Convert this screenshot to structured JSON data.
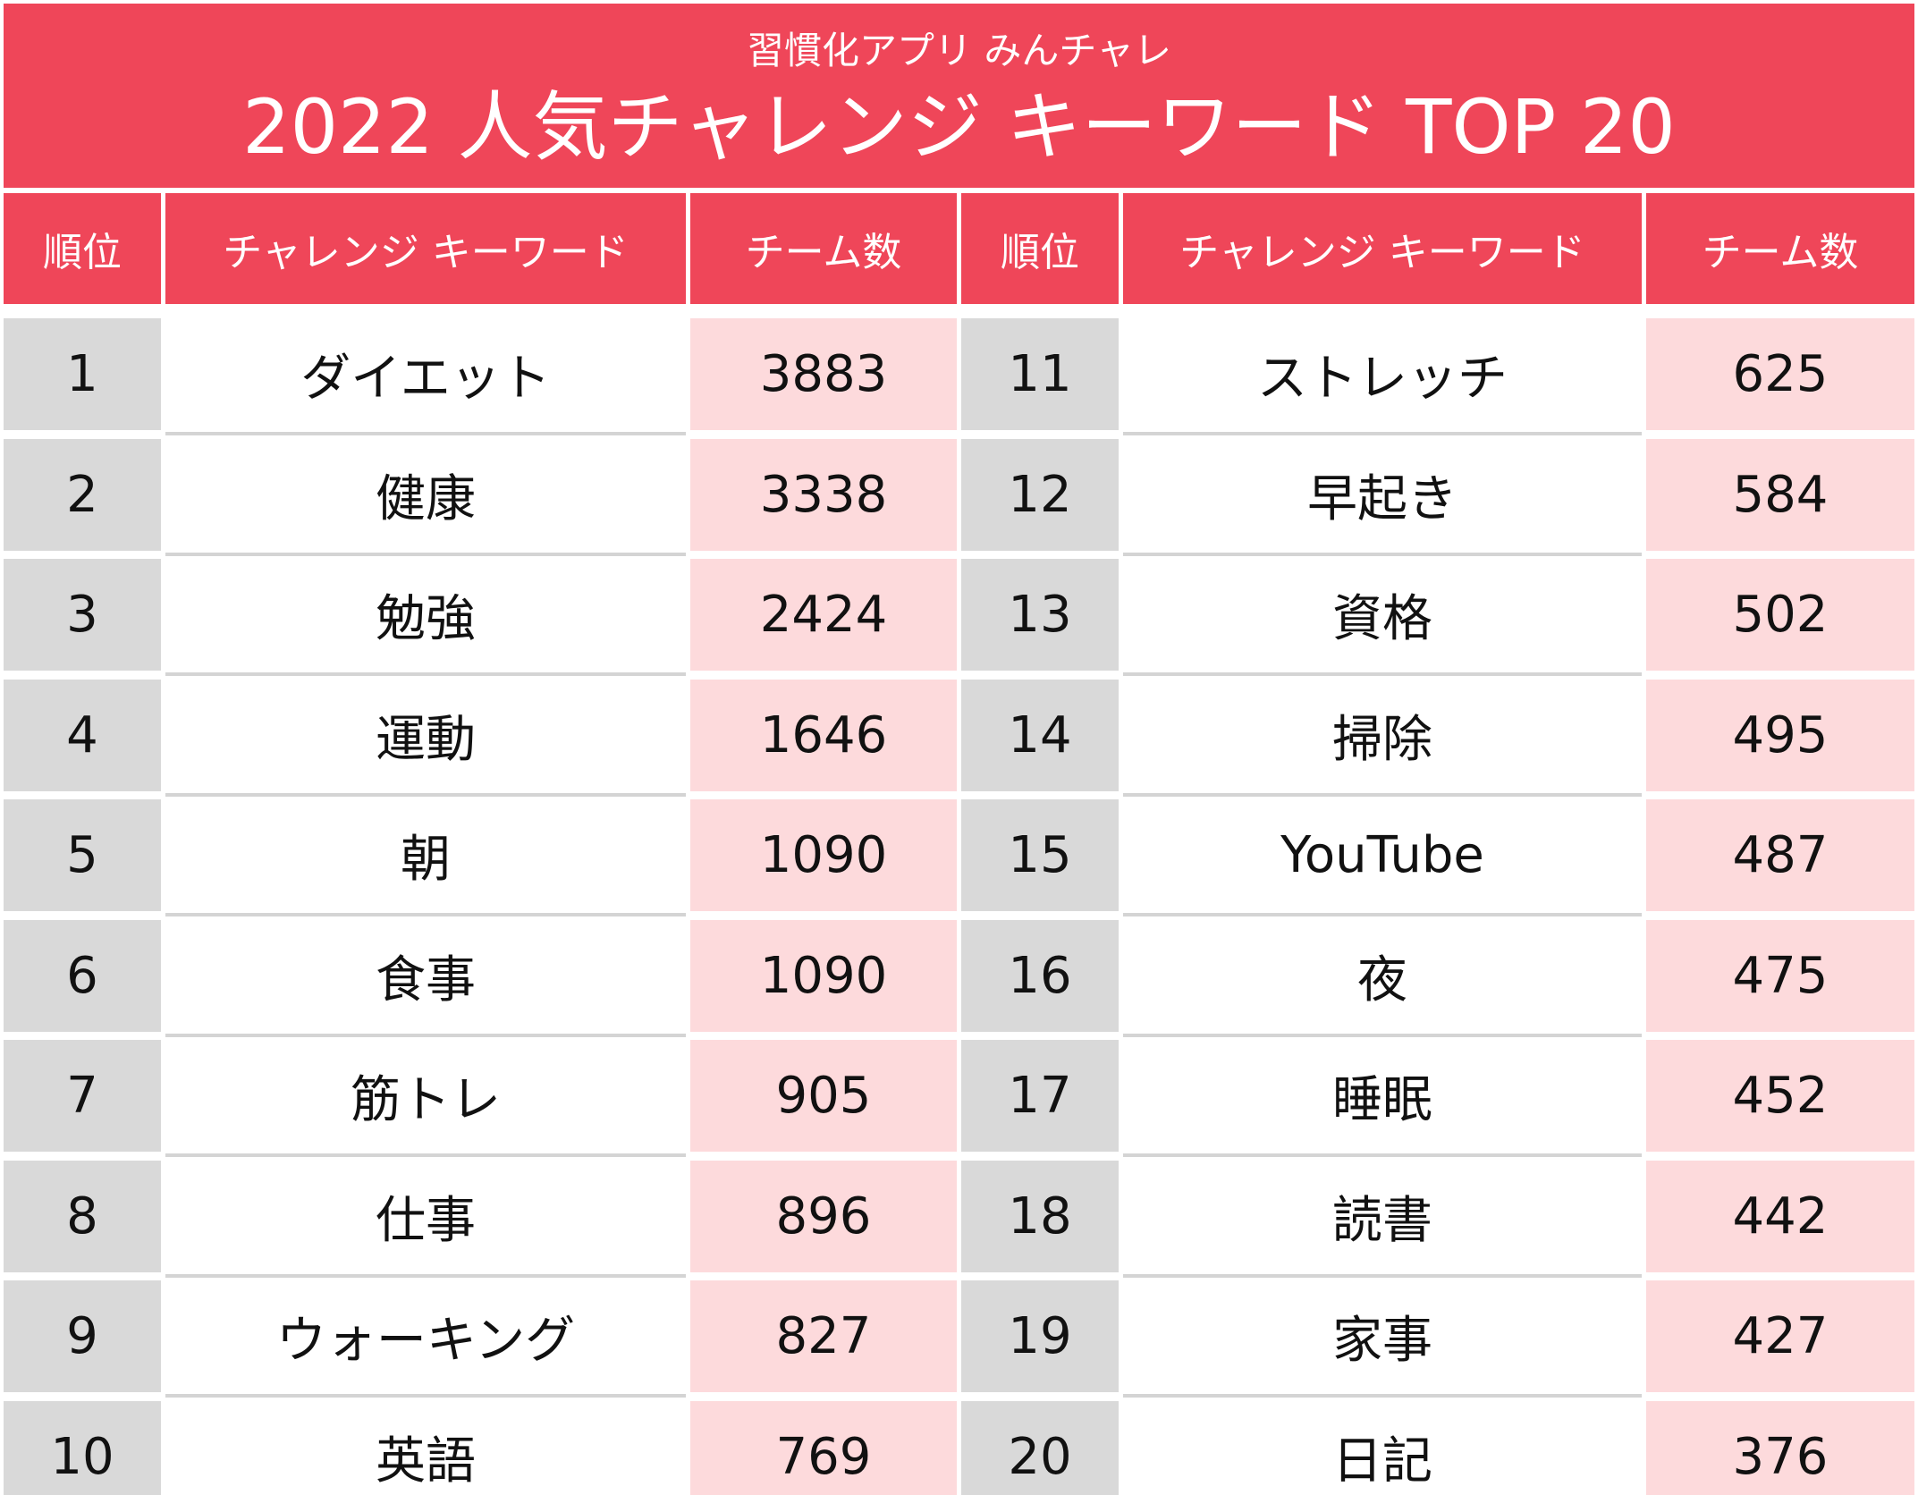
{
  "title": {
    "subtitle": "習慣化アプリ みんチャレ",
    "main": "2022 人気チャレンジ キーワード TOP 20"
  },
  "headers": {
    "rank": "順位",
    "keyword": "チャレンジ キーワード",
    "count": "チーム数"
  },
  "colors": {
    "accent": "#ef4659",
    "rank_bg": "#d9d9d9",
    "count_bg": "#fddadc"
  },
  "left_rows": [
    {
      "rank": "1",
      "keyword": "ダイエット",
      "count": "3883"
    },
    {
      "rank": "2",
      "keyword": "健康",
      "count": "3338"
    },
    {
      "rank": "3",
      "keyword": "勉強",
      "count": "2424"
    },
    {
      "rank": "4",
      "keyword": "運動",
      "count": "1646"
    },
    {
      "rank": "5",
      "keyword": "朝",
      "count": "1090"
    },
    {
      "rank": "6",
      "keyword": "食事",
      "count": "1090"
    },
    {
      "rank": "7",
      "keyword": "筋トレ",
      "count": "905"
    },
    {
      "rank": "8",
      "keyword": "仕事",
      "count": "896"
    },
    {
      "rank": "9",
      "keyword": "ウォーキング",
      "count": "827"
    },
    {
      "rank": "10",
      "keyword": "英語",
      "count": "769"
    }
  ],
  "right_rows": [
    {
      "rank": "11",
      "keyword": "ストレッチ",
      "count": "625"
    },
    {
      "rank": "12",
      "keyword": "早起き",
      "count": "584"
    },
    {
      "rank": "13",
      "keyword": "資格",
      "count": "502"
    },
    {
      "rank": "14",
      "keyword": "掃除",
      "count": "495"
    },
    {
      "rank": "15",
      "keyword": "YouTube",
      "count": "487"
    },
    {
      "rank": "16",
      "keyword": "夜",
      "count": "475"
    },
    {
      "rank": "17",
      "keyword": "睡眠",
      "count": "452"
    },
    {
      "rank": "18",
      "keyword": "読書",
      "count": "442"
    },
    {
      "rank": "19",
      "keyword": "家事",
      "count": "427"
    },
    {
      "rank": "20",
      "keyword": "日記",
      "count": "376"
    }
  ]
}
